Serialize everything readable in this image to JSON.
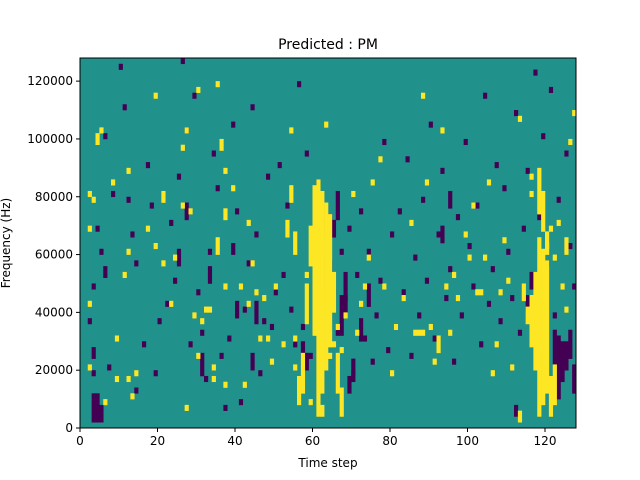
{
  "chart_data": {
    "type": "heatmap",
    "title": "Predicted : PM",
    "xlabel": "Time step",
    "ylabel": "Frequency (Hz)",
    "xlim": [
      0,
      128
    ],
    "ylim": [
      0,
      128000
    ],
    "x_ticks": [
      "0",
      "20",
      "40",
      "60",
      "80",
      "100",
      "120"
    ],
    "x_tick_values": [
      0,
      20,
      40,
      60,
      80,
      100,
      120
    ],
    "y_ticks": [
      "0",
      "20000",
      "40000",
      "60000",
      "80000",
      "100000",
      "120000"
    ],
    "y_tick_values": [
      0,
      20000,
      40000,
      60000,
      80000,
      100000,
      120000
    ],
    "grid": false,
    "legend": "none",
    "colormap": {
      "low": "#440154",
      "mid": "#21918c",
      "high": "#fde725"
    },
    "background_level": "mid",
    "bin_height_hz": 2000,
    "high_cells": [
      [
        2,
        10,
        10
      ],
      [
        2,
        21,
        21
      ],
      [
        2,
        34,
        34
      ],
      [
        2,
        40,
        40
      ],
      [
        3,
        39,
        39
      ],
      [
        4,
        49,
        50
      ],
      [
        5,
        51,
        51
      ],
      [
        8,
        42,
        42
      ],
      [
        9,
        8,
        8
      ],
      [
        9,
        15,
        15
      ],
      [
        11,
        26,
        26
      ],
      [
        12,
        30,
        30
      ],
      [
        12,
        8,
        8
      ],
      [
        12,
        44,
        44
      ],
      [
        13,
        5,
        5
      ],
      [
        17,
        34,
        34
      ],
      [
        19,
        57,
        57
      ],
      [
        19,
        31,
        31
      ],
      [
        21,
        39,
        40
      ],
      [
        21,
        28,
        28
      ],
      [
        24,
        29,
        29
      ],
      [
        23,
        21,
        21
      ],
      [
        26,
        48,
        48
      ],
      [
        26,
        38,
        38
      ],
      [
        27,
        51,
        51
      ],
      [
        28,
        37,
        37
      ],
      [
        29,
        19,
        19
      ],
      [
        30,
        58,
        58
      ],
      [
        30,
        12,
        12
      ],
      [
        31,
        18,
        18
      ],
      [
        32,
        20,
        20
      ],
      [
        33,
        20,
        20
      ],
      [
        35,
        59,
        59
      ],
      [
        34,
        8,
        8
      ],
      [
        34,
        10,
        10
      ],
      [
        35,
        30,
        32
      ],
      [
        36,
        48,
        49
      ],
      [
        37,
        44,
        44
      ],
      [
        37,
        36,
        37
      ],
      [
        37,
        24,
        24
      ],
      [
        37,
        7,
        7
      ],
      [
        39,
        41,
        41
      ],
      [
        41,
        24,
        24
      ],
      [
        42,
        7,
        7
      ],
      [
        43,
        21,
        21
      ],
      [
        43,
        35,
        35
      ],
      [
        44,
        28,
        28
      ],
      [
        46,
        15,
        15
      ],
      [
        48,
        15,
        15
      ],
      [
        49,
        11,
        11
      ],
      [
        52,
        14,
        14
      ],
      [
        54,
        51,
        51
      ],
      [
        55,
        10,
        10
      ],
      [
        55,
        15,
        15
      ],
      [
        58,
        26,
        26
      ],
      [
        59,
        4,
        4
      ],
      [
        60,
        30,
        30
      ],
      [
        62,
        2,
        3
      ],
      [
        64,
        12,
        12
      ],
      [
        65,
        14,
        14
      ],
      [
        67,
        13,
        13
      ],
      [
        66,
        17,
        17
      ],
      [
        68,
        19,
        19
      ],
      [
        71,
        16,
        16
      ],
      [
        72,
        21,
        21
      ],
      [
        73,
        24,
        24
      ],
      [
        74,
        29,
        29
      ],
      [
        77,
        46,
        46
      ],
      [
        78,
        24,
        24
      ],
      [
        80,
        9,
        9
      ],
      [
        85,
        35,
        35
      ],
      [
        86,
        16,
        16
      ],
      [
        87,
        16,
        16
      ],
      [
        88,
        16,
        16
      ],
      [
        89,
        42,
        42
      ],
      [
        90,
        17,
        17
      ],
      [
        91,
        11,
        11
      ],
      [
        92,
        13,
        15
      ],
      [
        93,
        51,
        51
      ],
      [
        94,
        24,
        24
      ],
      [
        95,
        16,
        16
      ],
      [
        96,
        26,
        26
      ],
      [
        100,
        29,
        29
      ],
      [
        102,
        23,
        23
      ],
      [
        103,
        23,
        23
      ],
      [
        104,
        29,
        29
      ],
      [
        106,
        9,
        9
      ],
      [
        107,
        14,
        14
      ],
      [
        108,
        23,
        23
      ],
      [
        109,
        32,
        32
      ],
      [
        111,
        10,
        10
      ],
      [
        113,
        53,
        53
      ],
      [
        116,
        43,
        43
      ],
      [
        116,
        40,
        40
      ],
      [
        120,
        31,
        31
      ],
      [
        121,
        34,
        34
      ],
      [
        122,
        29,
        29
      ],
      [
        123,
        35,
        35
      ],
      [
        124,
        24,
        24
      ],
      [
        126,
        49,
        49
      ],
      [
        127,
        54,
        54
      ],
      [
        105,
        42,
        42
      ],
      [
        99,
        33,
        33
      ],
      [
        97,
        22,
        22
      ],
      [
        81,
        17,
        17
      ],
      [
        75,
        42,
        42
      ],
      [
        70,
        40,
        40
      ],
      [
        63,
        52,
        52
      ],
      [
        47,
        22,
        22
      ],
      [
        45,
        23,
        23
      ],
      [
        6,
        4,
        4
      ],
      [
        14,
        9,
        9
      ],
      [
        27,
        3,
        3
      ],
      [
        50,
        24,
        24
      ],
      [
        83,
        22,
        22
      ],
      [
        88,
        57,
        57
      ],
      [
        110,
        25,
        25
      ],
      [
        118,
        13,
        13
      ],
      [
        125,
        20,
        20
      ],
      [
        101,
        38,
        38
      ],
      [
        60,
        16,
        41
      ],
      [
        61,
        2,
        42
      ],
      [
        62,
        6,
        40
      ],
      [
        63,
        10,
        38
      ],
      [
        64,
        14,
        36
      ],
      [
        65,
        20,
        26
      ],
      [
        59,
        28,
        34
      ],
      [
        58,
        18,
        24
      ],
      [
        57,
        6,
        12
      ],
      [
        56,
        4,
        8
      ],
      [
        66,
        6,
        12
      ],
      [
        67,
        2,
        6
      ],
      [
        55,
        30,
        33
      ],
      [
        54,
        39,
        41
      ],
      [
        53,
        33,
        35
      ],
      [
        118,
        2,
        32
      ],
      [
        119,
        4,
        30
      ],
      [
        120,
        6,
        28
      ],
      [
        117,
        10,
        26
      ],
      [
        116,
        14,
        22
      ],
      [
        115,
        18,
        20
      ],
      [
        114,
        22,
        24
      ],
      [
        113,
        1,
        2
      ],
      [
        121,
        2,
        8
      ],
      [
        122,
        4,
        10
      ],
      [
        119,
        34,
        40
      ],
      [
        118,
        37,
        44
      ],
      [
        120,
        30,
        33
      ],
      [
        125,
        30,
        32
      ]
    ],
    "low_cells": [
      [
        3,
        1,
        5
      ],
      [
        4,
        1,
        5
      ],
      [
        5,
        1,
        3
      ],
      [
        3,
        12,
        13
      ],
      [
        2,
        18,
        18
      ],
      [
        3,
        9,
        9
      ],
      [
        4,
        34,
        34
      ],
      [
        3,
        24,
        24
      ],
      [
        5,
        30,
        30
      ],
      [
        6,
        26,
        27
      ],
      [
        6,
        50,
        50
      ],
      [
        7,
        10,
        10
      ],
      [
        8,
        40,
        40
      ],
      [
        10,
        62,
        62
      ],
      [
        11,
        55,
        55
      ],
      [
        12,
        39,
        39
      ],
      [
        13,
        33,
        33
      ],
      [
        14,
        28,
        28
      ],
      [
        14,
        6,
        6
      ],
      [
        16,
        14,
        14
      ],
      [
        17,
        45,
        45
      ],
      [
        18,
        38,
        38
      ],
      [
        19,
        9,
        9
      ],
      [
        20,
        18,
        18
      ],
      [
        22,
        21,
        21
      ],
      [
        23,
        35,
        35
      ],
      [
        24,
        25,
        25
      ],
      [
        25,
        43,
        43
      ],
      [
        26,
        63,
        63
      ],
      [
        27,
        51,
        51
      ],
      [
        28,
        14,
        14
      ],
      [
        29,
        57,
        57
      ],
      [
        30,
        23,
        23
      ],
      [
        31,
        16,
        16
      ],
      [
        32,
        8,
        8
      ],
      [
        33,
        30,
        30
      ],
      [
        34,
        47,
        47
      ],
      [
        35,
        41,
        41
      ],
      [
        36,
        12,
        12
      ],
      [
        37,
        3,
        3
      ],
      [
        38,
        15,
        15
      ],
      [
        39,
        52,
        52
      ],
      [
        40,
        37,
        37
      ],
      [
        41,
        4,
        4
      ],
      [
        42,
        20,
        20
      ],
      [
        43,
        28,
        28
      ],
      [
        44,
        55,
        55
      ],
      [
        45,
        33,
        33
      ],
      [
        46,
        9,
        9
      ],
      [
        47,
        18,
        18
      ],
      [
        48,
        43,
        43
      ],
      [
        49,
        17,
        17
      ],
      [
        50,
        23,
        23
      ],
      [
        51,
        45,
        45
      ],
      [
        52,
        26,
        26
      ],
      [
        53,
        38,
        38
      ],
      [
        54,
        20,
        20
      ],
      [
        55,
        14,
        14
      ],
      [
        56,
        59,
        59
      ],
      [
        57,
        17,
        17
      ],
      [
        58,
        47,
        47
      ],
      [
        59,
        12,
        12
      ],
      [
        60,
        19,
        19
      ],
      [
        61,
        42,
        42
      ],
      [
        62,
        33,
        33
      ],
      [
        63,
        28,
        28
      ],
      [
        64,
        36,
        36
      ],
      [
        65,
        23,
        23
      ],
      [
        66,
        16,
        16
      ],
      [
        67,
        30,
        30
      ],
      [
        68,
        22,
        22
      ],
      [
        69,
        34,
        34
      ],
      [
        70,
        9,
        9
      ],
      [
        71,
        26,
        26
      ],
      [
        72,
        37,
        37
      ],
      [
        73,
        15,
        15
      ],
      [
        74,
        30,
        30
      ],
      [
        75,
        11,
        11
      ],
      [
        76,
        19,
        19
      ],
      [
        77,
        25,
        25
      ],
      [
        78,
        49,
        49
      ],
      [
        79,
        13,
        13
      ],
      [
        80,
        33,
        33
      ],
      [
        81,
        17,
        17
      ],
      [
        82,
        37,
        37
      ],
      [
        83,
        23,
        23
      ],
      [
        84,
        46,
        46
      ],
      [
        85,
        12,
        12
      ],
      [
        86,
        29,
        29
      ],
      [
        87,
        19,
        19
      ],
      [
        88,
        39,
        39
      ],
      [
        89,
        25,
        25
      ],
      [
        90,
        52,
        52
      ],
      [
        91,
        15,
        15
      ],
      [
        92,
        33,
        33
      ],
      [
        93,
        44,
        44
      ],
      [
        94,
        22,
        22
      ],
      [
        95,
        27,
        27
      ],
      [
        96,
        11,
        11
      ],
      [
        97,
        36,
        36
      ],
      [
        98,
        19,
        19
      ],
      [
        99,
        49,
        49
      ],
      [
        100,
        31,
        31
      ],
      [
        101,
        24,
        24
      ],
      [
        102,
        38,
        38
      ],
      [
        103,
        14,
        14
      ],
      [
        104,
        57,
        57
      ],
      [
        105,
        21,
        21
      ],
      [
        106,
        27,
        27
      ],
      [
        107,
        45,
        45
      ],
      [
        108,
        18,
        18
      ],
      [
        109,
        41,
        41
      ],
      [
        110,
        30,
        30
      ],
      [
        111,
        22,
        22
      ],
      [
        112,
        54,
        54
      ],
      [
        113,
        16,
        16
      ],
      [
        114,
        34,
        34
      ],
      [
        115,
        44,
        44
      ],
      [
        116,
        25,
        25
      ],
      [
        117,
        61,
        61
      ],
      [
        118,
        36,
        36
      ],
      [
        119,
        50,
        50
      ],
      [
        120,
        28,
        28
      ],
      [
        121,
        58,
        58
      ],
      [
        122,
        19,
        19
      ],
      [
        123,
        39,
        39
      ],
      [
        124,
        14,
        14
      ],
      [
        125,
        47,
        47
      ],
      [
        126,
        31,
        31
      ],
      [
        127,
        24,
        24
      ],
      [
        64,
        26,
        28
      ],
      [
        65,
        33,
        35
      ],
      [
        67,
        16,
        22
      ],
      [
        68,
        20,
        26
      ],
      [
        63,
        24,
        28
      ],
      [
        62,
        34,
        38
      ],
      [
        66,
        36,
        40
      ],
      [
        115,
        20,
        22
      ],
      [
        116,
        24,
        26
      ],
      [
        123,
        5,
        15
      ],
      [
        124,
        8,
        13
      ],
      [
        125,
        10,
        14
      ],
      [
        126,
        12,
        16
      ],
      [
        127,
        6,
        10
      ],
      [
        122,
        11,
        16
      ],
      [
        112,
        2,
        3
      ],
      [
        95,
        38,
        40
      ],
      [
        93,
        32,
        34
      ],
      [
        74,
        21,
        24
      ],
      [
        72,
        15,
        18
      ],
      [
        70,
        8,
        11
      ],
      [
        69,
        6,
        8
      ],
      [
        57,
        12,
        14
      ],
      [
        58,
        10,
        12
      ],
      [
        45,
        18,
        21
      ],
      [
        44,
        10,
        12
      ],
      [
        40,
        19,
        21
      ],
      [
        39,
        30,
        31
      ],
      [
        33,
        25,
        27
      ],
      [
        31,
        9,
        12
      ],
      [
        27,
        36,
        38
      ],
      [
        25,
        28,
        30
      ]
    ]
  }
}
